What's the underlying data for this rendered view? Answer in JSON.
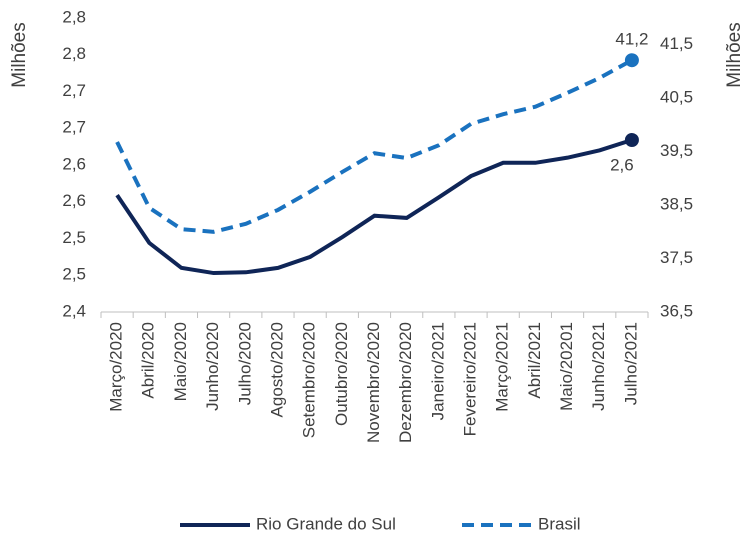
{
  "chart_data": {
    "type": "line",
    "categories": [
      "Março/2020",
      "Abril/2020",
      "Maio/2020",
      "Junho/2020",
      "Julho/2020",
      "Agosto/2020",
      "Setembro/2020",
      "Outubro/2020",
      "Novembro/2020",
      "Dezembro/2020",
      "Janeiro/2021",
      "Fevereiro/2021",
      "Março/2021",
      "Abril/2021",
      "Maio/20201",
      "Junho/2021",
      "Julho/2021"
    ],
    "y_label": "Milhões",
    "y2_label": "Milhões",
    "ylim": [
      2.4,
      2.8
    ],
    "yticks": [
      {
        "value": 2.4,
        "label": "2,4"
      },
      {
        "value": 2.45,
        "label": "2,5"
      },
      {
        "value": 2.5,
        "label": "2,5"
      },
      {
        "value": 2.55,
        "label": "2,6"
      },
      {
        "value": 2.6,
        "label": "2,6"
      },
      {
        "value": 2.65,
        "label": "2,7"
      },
      {
        "value": 2.7,
        "label": "2,7"
      },
      {
        "value": 2.75,
        "label": "2,8"
      },
      {
        "value": 2.8,
        "label": "2,8"
      }
    ],
    "y2lim": [
      36.5,
      42.0
    ],
    "y2ticks": [
      {
        "value": 36.5,
        "label": "36,5"
      },
      {
        "value": 37.5,
        "label": "37,5"
      },
      {
        "value": 38.5,
        "label": "38,5"
      },
      {
        "value": 39.5,
        "label": "39,5"
      },
      {
        "value": 40.5,
        "label": "40,5"
      },
      {
        "value": 41.5,
        "label": "41,5"
      }
    ],
    "series": [
      {
        "name": "Rio Grande do Sul",
        "color": "#0f2557",
        "dash": false,
        "values": [
          2.559,
          2.494,
          2.46,
          2.453,
          2.454,
          2.46,
          2.475,
          2.502,
          2.531,
          2.528,
          2.556,
          2.585,
          2.603,
          2.603,
          2.61,
          2.62,
          2.634
        ],
        "value_labels": [
          null,
          null,
          null,
          null,
          null,
          null,
          null,
          null,
          null,
          null,
          null,
          null,
          null,
          null,
          null,
          null,
          "2,6"
        ]
      },
      {
        "name": "Brasil",
        "color": "#1a72bf",
        "dash": true,
        "axis": "y2",
        "values": [
          39.68,
          38.45,
          38.05,
          38.0,
          38.15,
          38.41,
          38.75,
          39.12,
          39.47,
          39.38,
          39.62,
          40.02,
          40.2,
          40.34,
          40.6,
          40.88,
          41.21
        ],
        "value_labels": [
          null,
          null,
          null,
          null,
          null,
          null,
          null,
          null,
          null,
          null,
          null,
          null,
          null,
          null,
          null,
          null,
          "41,2"
        ]
      }
    ]
  }
}
